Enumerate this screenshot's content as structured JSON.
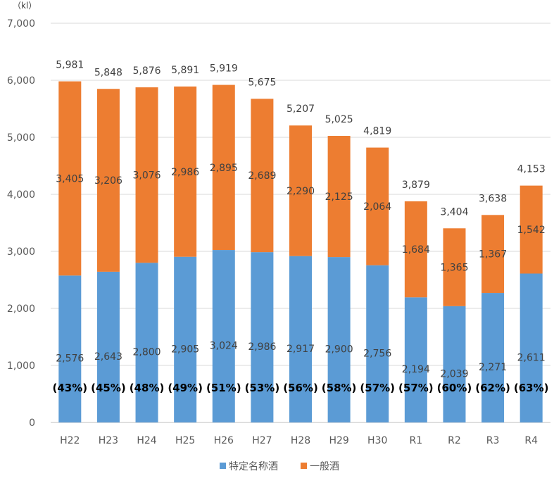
{
  "chart_data": {
    "type": "bar",
    "stacked": true,
    "unit": "（kl）",
    "categories": [
      "H22",
      "H23",
      "H24",
      "H25",
      "H26",
      "H27",
      "H28",
      "H29",
      "H30",
      "R1",
      "R2",
      "R3",
      "R4"
    ],
    "series": [
      {
        "name": "特定名称酒",
        "color": "#5B9BD5",
        "values": [
          2576,
          2643,
          2800,
          2905,
          3024,
          2986,
          2917,
          2900,
          2756,
          2194,
          2039,
          2271,
          2611
        ],
        "labels": [
          "2,576",
          "2,643",
          "2,800",
          "2,905",
          "3,024",
          "2,986",
          "2,917",
          "2,900",
          "2,756",
          "2,194",
          "2,039",
          "2,271",
          "2,611"
        ]
      },
      {
        "name": "一般酒",
        "color": "#ED7D31",
        "values": [
          3405,
          3206,
          3076,
          2986,
          2895,
          2689,
          2290,
          2125,
          2064,
          1684,
          1365,
          1367,
          1542
        ],
        "labels": [
          "3,405",
          "3,206",
          "3,076",
          "2,986",
          "2,895",
          "2,689",
          "2,290",
          "2,125",
          "2,064",
          "1,684",
          "1,365",
          "1,367",
          "1,542"
        ]
      }
    ],
    "totals": [
      5981,
      5848,
      5876,
      5891,
      5919,
      5675,
      5207,
      5025,
      4819,
      3879,
      3404,
      3638,
      4153
    ],
    "total_labels": [
      "5,981",
      "5,848",
      "5,876",
      "5,891",
      "5,919",
      "5,675",
      "5,207",
      "5,025",
      "4,819",
      "3,879",
      "3,404",
      "3,638",
      "4,153"
    ],
    "shares": [
      "(43%)",
      "(45%)",
      "(48%)",
      "(49%)",
      "(51%)",
      "(53%)",
      "(56%)",
      "(58%)",
      "(57%)",
      "(57%)",
      "(60%)",
      "(62%)",
      "(63%)"
    ],
    "ylim": [
      0,
      7000
    ],
    "yticks": [
      0,
      1000,
      2000,
      3000,
      4000,
      5000,
      6000,
      7000
    ],
    "ytick_labels": [
      "0",
      "1,000",
      "2,000",
      "3,000",
      "4,000",
      "5,000",
      "6,000",
      "7,000"
    ],
    "grid": true,
    "legend_position": "bottom"
  }
}
